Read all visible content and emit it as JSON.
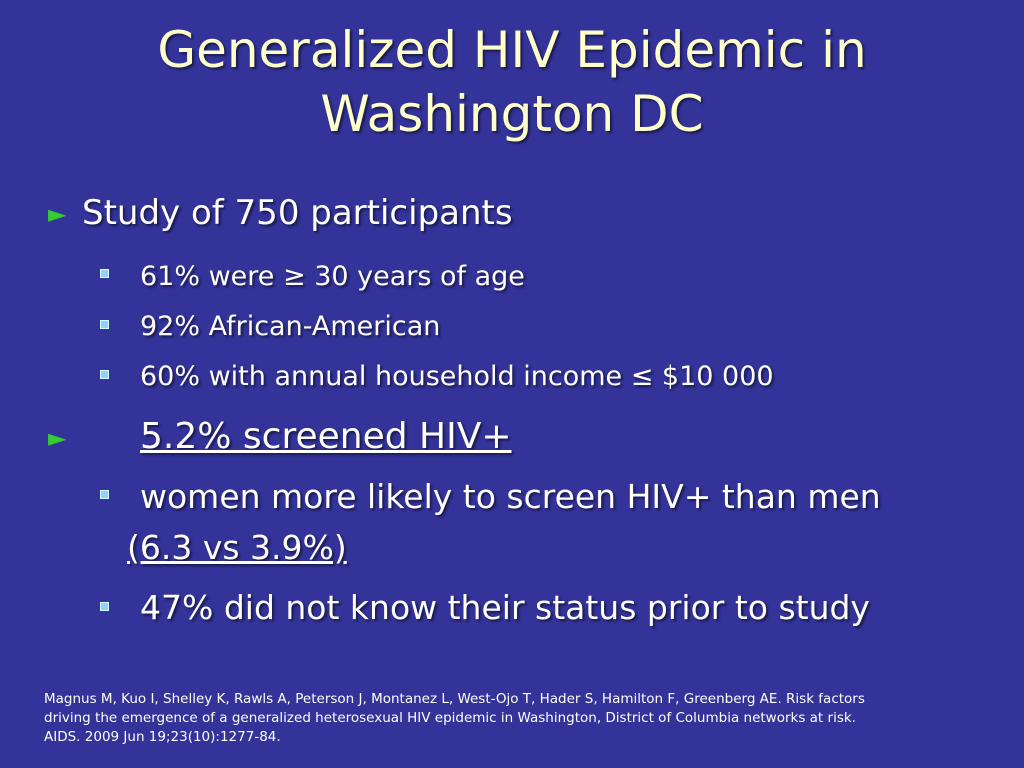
{
  "title": {
    "line1": "Generalized HIV Epidemic in",
    "line2": "Washington DC"
  },
  "bullets": {
    "b1": "Study of 750 participants",
    "b1_sub": [
      "61% were ≥ 30 years of age",
      "92% African-American",
      "60% with annual household income ≤ $10 000"
    ],
    "b2": "5.2% screened HIV+",
    "b2_sub1_line1": "women more likely to screen HIV+ than men",
    "b2_sub1_line2": "(6.3 vs 3.9%)",
    "b2_sub2": "47% did not know their status prior to study"
  },
  "icons": {
    "level1": "green-triangle-bullet-icon",
    "level2": "light-blue-square-bullet-icon"
  },
  "colors": {
    "background": "#333399",
    "title": "#ffffcc",
    "text": "#ffffff",
    "triangle_bullet": "#33cc33",
    "square_bullet": "#99ccff"
  },
  "citation": {
    "line1": "Magnus M, Kuo I, Shelley K, Rawls A, Peterson J, Montanez L, West-Ojo T, Hader S, Hamilton F, Greenberg AE. Risk factors",
    "line2": "driving the emergence of a generalized heterosexual HIV epidemic in Washington, District of Columbia networks at risk.",
    "line3": "AIDS. 2009 Jun 19;23(10):1277-84."
  }
}
